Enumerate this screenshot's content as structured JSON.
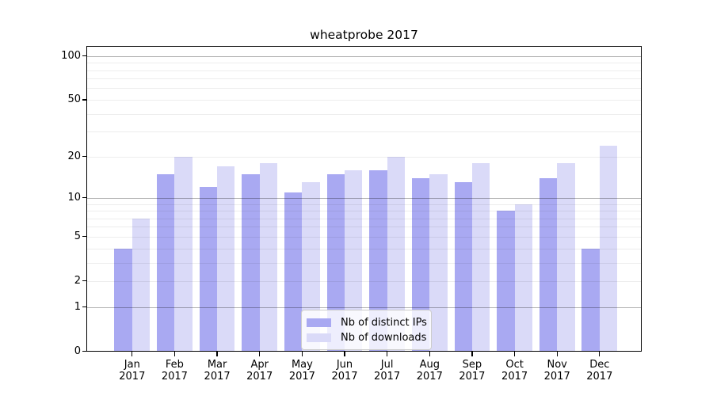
{
  "figure": {
    "background": "#ffffff"
  },
  "chart_data": {
    "type": "bar",
    "title": "wheatprobe 2017",
    "categories": [
      "Jan",
      "Feb",
      "Mar",
      "Apr",
      "May",
      "Jun",
      "Jul",
      "Aug",
      "Sep",
      "Oct",
      "Nov",
      "Dec"
    ],
    "year_label": "2017",
    "series": [
      {
        "name": "Nb of distinct IPs",
        "color": "#a9a9f2",
        "values": [
          4,
          15,
          12,
          15,
          11,
          15,
          16,
          14,
          13,
          8,
          14,
          4
        ]
      },
      {
        "name": "Nb of downloads",
        "color": "#dadaf8",
        "values": [
          7,
          20,
          17,
          18,
          13,
          16,
          20,
          15,
          18,
          9,
          18,
          24
        ]
      }
    ],
    "xlabel": "",
    "ylabel": "",
    "yscale": "log1p",
    "ylim": [
      0,
      115
    ],
    "yticks": [
      0,
      1,
      2,
      5,
      10,
      20,
      50,
      100
    ],
    "grid": {
      "on": true,
      "drawn_over_bars": true,
      "major_lines": [
        1,
        10,
        100
      ],
      "minor_lines": [
        2,
        3,
        4,
        5,
        6,
        7,
        8,
        9,
        20,
        30,
        40,
        50,
        60,
        70,
        80,
        90
      ]
    },
    "legend": {
      "position": "lower-center-inside",
      "entries": [
        "Nb of distinct IPs",
        "Nb of downloads"
      ]
    }
  }
}
